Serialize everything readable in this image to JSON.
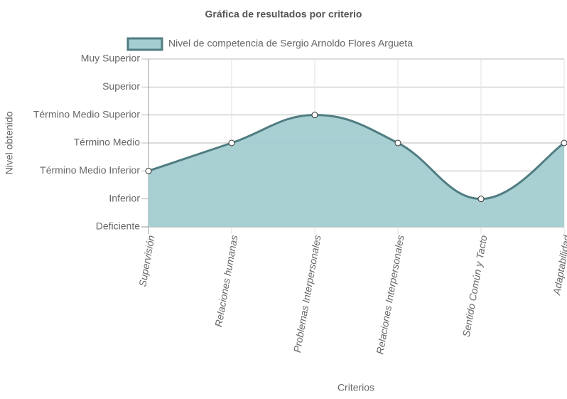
{
  "chart_data": {
    "type": "line",
    "title": "Gráfica de resultados por criterio",
    "x_label": "Criterios",
    "y_label": "Nivel obtenido",
    "categories": [
      "Supervisión",
      "Relaciones humanas",
      "Problemas Interpersonales",
      "Relaciones Interpersonales",
      "Sentido Común y Tacto",
      "Adaptabilidad"
    ],
    "series": [
      {
        "name": "Nivel de competencia de Sergio Arnoldo Flores Argueta",
        "color": "#507d82",
        "fill_color": "#a3cdd1",
        "values": [
          2,
          3,
          4,
          3,
          1,
          3
        ]
      }
    ],
    "ylim": [
      0,
      6
    ],
    "yticks": [
      {
        "value": 0,
        "label": "Deficiente"
      },
      {
        "value": 1,
        "label": "Inferior"
      },
      {
        "value": 2,
        "label": "Término Medio Inferior"
      },
      {
        "value": 3,
        "label": "Término Medio"
      },
      {
        "value": 4,
        "label": "Término Medio Superior"
      },
      {
        "value": 5,
        "label": "Superior"
      },
      {
        "value": 6,
        "label": "Muy Superior"
      }
    ],
    "grid": true,
    "legend": "top"
  }
}
